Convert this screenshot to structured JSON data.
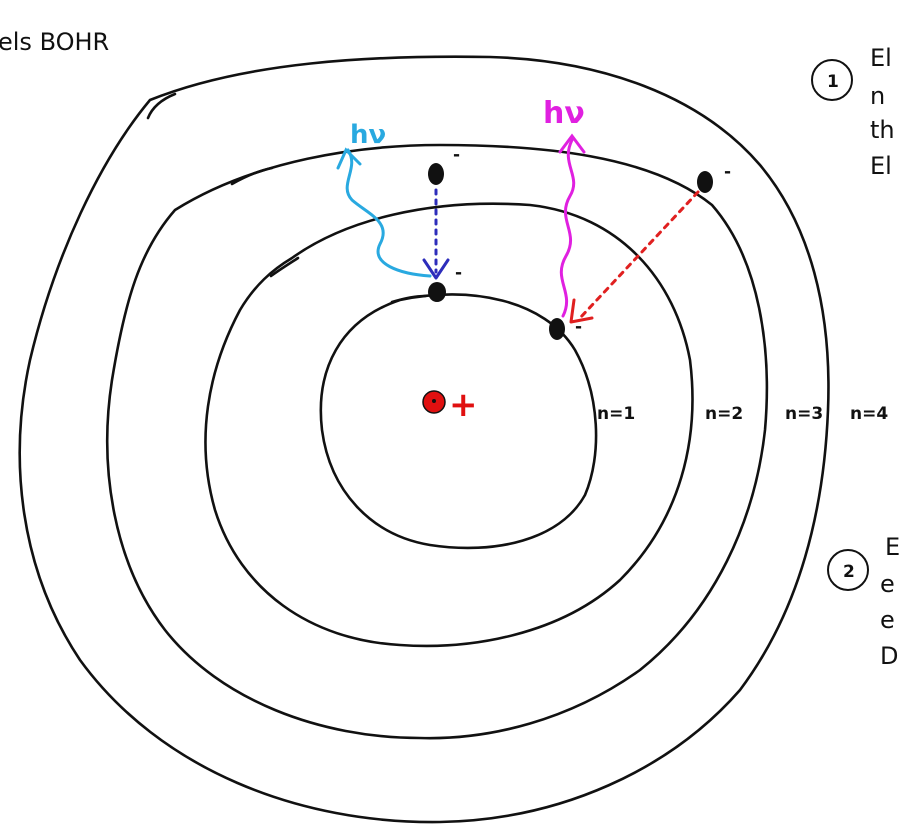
{
  "title": "els BOHR",
  "nucleus": {
    "charge_label": "+",
    "color": "#e01010"
  },
  "orbits": [
    {
      "label": "n=1"
    },
    {
      "label": "n=2"
    },
    {
      "label": "n=3"
    },
    {
      "label": "n=4"
    }
  ],
  "electron_charge": "-",
  "photons": [
    {
      "label": "hν",
      "color": "#29a9e0"
    },
    {
      "label": "hν",
      "color": "#e020e0"
    }
  ],
  "transitions": [
    {
      "from": "n=3",
      "to": "n=2",
      "color": "#2d2dbb"
    },
    {
      "from": "n=3",
      "to": "n=2",
      "color": "#e02020"
    }
  ],
  "notes": [
    {
      "number": "1",
      "lines": [
        "El",
        "n",
        "th",
        "El"
      ]
    },
    {
      "number": "2",
      "lines": [
        "E",
        "e",
        "e",
        "D"
      ]
    }
  ]
}
